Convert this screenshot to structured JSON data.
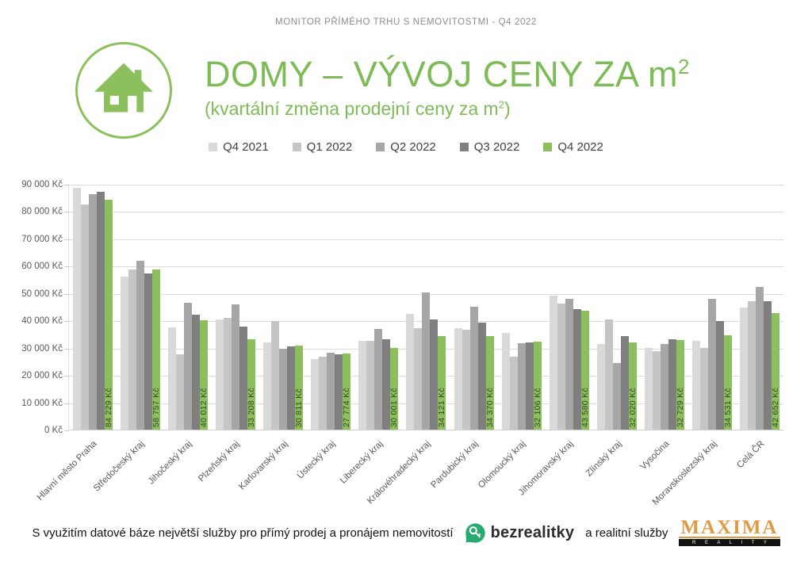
{
  "header": {
    "top_label": "MONITOR PŘÍMÉHO TRHU S NEMOVITOSTMI - Q4 2022"
  },
  "title": {
    "main_prefix": "DOMY – VÝVOJ CENY ZA m",
    "main_sup": "2",
    "subtitle_prefix": "(kvartální změna prodejní ceny za m",
    "subtitle_sup": "2",
    "subtitle_suffix": ")"
  },
  "colors": {
    "accent_green": "#7dbb56",
    "bar_green": "#8cc05c",
    "grid": "#dcdcdc",
    "axis_text": "#595959",
    "bezrealitky_green": "#27aa72",
    "maxima_orange": "#e09a41"
  },
  "chart_data": {
    "type": "bar",
    "title": "DOMY – VÝVOJ CENY ZA m² (kvartální změna prodejní ceny za m²)",
    "xlabel": "",
    "ylabel": "",
    "ylim": [
      0,
      90000
    ],
    "ytick_step": 10000,
    "ytick_labels": [
      "0 Kč",
      "10 000 Kč",
      "20 000 Kč",
      "30 000 Kč",
      "40 000 Kč",
      "50 000 Kč",
      "60 000 Kč",
      "70 000 Kč",
      "80 000 Kč",
      "90 000 Kč"
    ],
    "grid": "horizontal",
    "legend_position": "top",
    "categories": [
      "Hlavní město Praha",
      "Středočeský kraj",
      "Jihočeský kraj",
      "Plzeňský kraj",
      "Karlovarský kraj",
      "Ústecký kraj",
      "Liberecký kraj",
      "Královéhradecký kraj",
      "Pardubický kraj",
      "Olomoucký kraj",
      "Jihomoravský kraj",
      "Zlínský kraj",
      "Vysočina",
      "Moravskoslezský kraj",
      "Celá ČR"
    ],
    "series": [
      {
        "name": "Q4 2021",
        "color": "#d9d9d9",
        "values": [
          88500,
          55900,
          37500,
          40400,
          31800,
          25900,
          32400,
          42300,
          37200,
          35300,
          49000,
          31500,
          29800,
          32500,
          44800
        ]
      },
      {
        "name": "Q1 2022",
        "color": "#c5c5c5",
        "values": [
          82400,
          58700,
          27500,
          40800,
          39800,
          26600,
          32600,
          37200,
          36500,
          26600,
          46300,
          40300,
          28700,
          30000,
          47100
        ]
      },
      {
        "name": "Q2 2022",
        "color": "#a6a6a6",
        "values": [
          86200,
          61900,
          46500,
          45800,
          29700,
          28200,
          36900,
          50100,
          44900,
          31700,
          47900,
          24300,
          31400,
          48000,
          52300
        ]
      },
      {
        "name": "Q3 2022",
        "color": "#7f7f7f",
        "values": [
          87000,
          57300,
          42000,
          37800,
          30400,
          27700,
          33200,
          40300,
          39300,
          31800,
          44000,
          34300,
          33000,
          39800,
          47000
        ]
      },
      {
        "name": "Q4 2022",
        "color": "#8cc05c",
        "values": [
          84229,
          58757,
          40012,
          33208,
          30811,
          27774,
          30001,
          34121,
          34370,
          32106,
          43580,
          32020,
          32729,
          34531,
          42652
        ],
        "labels": [
          "84 229 Kč",
          "58 757 Kč",
          "40 012 Kč",
          "33 208 Kč",
          "30 811 Kč",
          "27 774 Kč",
          "30 001 Kč",
          "34 121 Kč",
          "34 370 Kč",
          "32 106 Kč",
          "43 580 Kč",
          "32 020 Kč",
          "32 729 Kč",
          "34 531 Kč",
          "42 652 Kč"
        ]
      }
    ]
  },
  "footer": {
    "text": "S využitím datové báze největší služby pro přímý prodej a pronájem nemovitostí",
    "bezrealitky_label": "bezrealitky",
    "middle_text": "a realitní služby",
    "maxima_label": "MAXIMA",
    "maxima_sub": "R E A L I T Y"
  }
}
